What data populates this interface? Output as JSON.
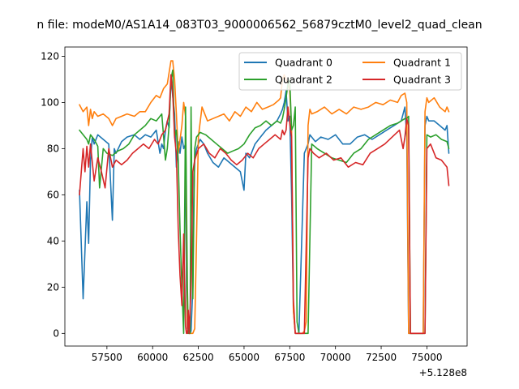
{
  "chart_data": {
    "type": "line",
    "title": "n file: modeM0/AS1A14_083T03_9000006562_56879cztM0_level2_quad_clean",
    "xlabel": "",
    "ylabel": "",
    "x_offset_label": "+5.128e8",
    "xlim": [
      55200,
      77200
    ],
    "ylim": [
      -5.5,
      124
    ],
    "x_ticks": [
      57500,
      60000,
      62500,
      65000,
      67500,
      70000,
      72500,
      75000
    ],
    "y_ticks": [
      0,
      20,
      40,
      60,
      80,
      100,
      120
    ],
    "grid": false,
    "legend_position": "top-right",
    "series": [
      {
        "name": "Quadrant 0",
        "color": "#1f77b4",
        "x": [
          56000,
          56200,
          56400,
          56500,
          56600,
          56700,
          56800,
          57000,
          57300,
          57600,
          57800,
          57900,
          58000,
          58300,
          58600,
          59000,
          59300,
          59600,
          59900,
          60200,
          60400,
          60500,
          60600,
          60700,
          60800,
          60900,
          61000,
          61200,
          61300,
          61400,
          61500,
          61600,
          61700,
          61800,
          61850,
          61900,
          62000,
          62050,
          62100,
          62200,
          62250,
          62300,
          62400,
          62600,
          62800,
          63000,
          63300,
          63600,
          63900,
          64200,
          64500,
          64800,
          65000,
          65100,
          65300,
          65600,
          65900,
          66200,
          66500,
          66800,
          67000,
          67100,
          67200,
          67300,
          67400,
          67500,
          67600,
          67700,
          67800,
          67900,
          68000,
          68300,
          68500,
          68600,
          68700,
          68900,
          69200,
          69600,
          70000,
          70400,
          70800,
          71200,
          71600,
          72000,
          72400,
          72800,
          73200,
          73600,
          73800,
          73900,
          74000,
          74100,
          74200,
          74400,
          74600,
          74800,
          74900,
          75000,
          75100,
          75400,
          75700,
          76000,
          76100,
          76200
        ],
        "y": [
          62,
          15,
          57,
          39,
          75,
          85,
          82,
          86,
          84,
          82,
          49,
          80,
          78,
          83,
          85,
          86,
          84,
          86,
          85,
          88,
          78,
          82,
          80,
          88,
          92,
          89,
          110,
          95,
          72,
          83,
          78,
          85,
          80,
          82,
          20,
          2,
          0,
          0,
          1,
          20,
          58,
          75,
          80,
          84,
          82,
          78,
          74,
          72,
          76,
          74,
          72,
          70,
          62,
          78,
          76,
          82,
          85,
          88,
          90,
          92,
          95,
          97,
          100,
          105,
          92,
          94,
          60,
          10,
          0,
          0,
          0,
          78,
          82,
          86,
          85,
          83,
          85,
          84,
          86,
          82,
          82,
          85,
          86,
          84,
          86,
          88,
          90,
          92,
          98,
          85,
          0,
          0,
          0,
          0,
          0,
          0,
          90,
          94,
          92,
          92,
          90,
          88,
          90,
          78
        ]
      },
      {
        "name": "Quadrant 1",
        "color": "#ff7f0e",
        "x": [
          56000,
          56200,
          56400,
          56500,
          56600,
          56700,
          56800,
          57000,
          57300,
          57600,
          57800,
          58000,
          58300,
          58600,
          59000,
          59300,
          59600,
          59900,
          60200,
          60400,
          60600,
          60800,
          61000,
          61100,
          61200,
          61300,
          61400,
          61600,
          61700,
          61800,
          61900,
          62000,
          62100,
          62200,
          62300,
          62400,
          62500,
          62700,
          63000,
          63300,
          63600,
          63900,
          64200,
          64500,
          64800,
          65100,
          65400,
          65700,
          66000,
          66300,
          66600,
          66900,
          67000,
          67100,
          67200,
          67300,
          67400,
          67500,
          67600,
          67700,
          67800,
          67900,
          68000,
          68200,
          68300,
          68400,
          68500,
          68600,
          68700,
          69000,
          69400,
          69800,
          70200,
          70600,
          71000,
          71400,
          71800,
          72200,
          72600,
          73000,
          73400,
          73600,
          73800,
          73900,
          74000,
          74100,
          74200,
          74400,
          74600,
          74800,
          74900,
          75000,
          75100,
          75400,
          75700,
          76000,
          76100,
          76200
        ],
        "y": [
          99,
          96,
          98,
          90,
          97,
          93,
          96,
          94,
          95,
          93,
          90,
          93,
          94,
          95,
          94,
          96,
          96,
          100,
          103,
          102,
          106,
          108,
          118,
          118,
          110,
          95,
          78,
          90,
          100,
          94,
          2,
          0,
          0,
          0,
          2,
          40,
          85,
          98,
          92,
          93,
          94,
          95,
          92,
          96,
          94,
          98,
          96,
          100,
          97,
          98,
          99,
          101,
          102,
          110,
          112,
          110,
          108,
          105,
          88,
          10,
          0,
          0,
          0,
          0,
          1,
          5,
          90,
          97,
          95,
          96,
          98,
          95,
          97,
          95,
          98,
          97,
          98,
          100,
          99,
          101,
          100,
          103,
          104,
          100,
          0,
          0,
          0,
          0,
          0,
          0,
          96,
          102,
          100,
          102,
          98,
          96,
          98,
          96
        ]
      },
      {
        "name": "Quadrant 2",
        "color": "#2ca02c",
        "x": [
          56000,
          56200,
          56400,
          56500,
          56600,
          56800,
          57000,
          57100,
          57300,
          57500,
          57800,
          58100,
          58400,
          58700,
          59000,
          59300,
          59600,
          59900,
          60200,
          60500,
          60700,
          60800,
          60900,
          61000,
          61100,
          61200,
          61300,
          61400,
          61500,
          61600,
          61700,
          61800,
          61900,
          61950,
          62000,
          62050,
          62100,
          62200,
          62300,
          62400,
          62600,
          62900,
          63200,
          63500,
          63800,
          64100,
          64400,
          64700,
          65000,
          65300,
          65600,
          65900,
          66200,
          66500,
          66800,
          67000,
          67100,
          67200,
          67300,
          67400,
          67500,
          67600,
          67700,
          67800,
          67900,
          68000,
          68100,
          68300,
          68500,
          68700,
          69000,
          69400,
          69800,
          70200,
          70600,
          71000,
          71400,
          71800,
          72200,
          72600,
          73000,
          73400,
          73600,
          73800,
          73900,
          74000,
          74100,
          74200,
          74400,
          74600,
          74800,
          74900,
          75000,
          75200,
          75500,
          75800,
          76100,
          76200
        ],
        "y": [
          88,
          86,
          84,
          82,
          86,
          84,
          81,
          63,
          80,
          78,
          77,
          79,
          80,
          82,
          86,
          88,
          90,
          93,
          92,
          95,
          75,
          80,
          90,
          110,
          114,
          85,
          88,
          75,
          45,
          20,
          0,
          98,
          20,
          0,
          0,
          0,
          98,
          15,
          80,
          85,
          87,
          86,
          84,
          82,
          80,
          78,
          79,
          80,
          82,
          86,
          89,
          90,
          92,
          90,
          92,
          91,
          93,
          97,
          102,
          108,
          110,
          88,
          90,
          98,
          5,
          0,
          0,
          0,
          0,
          82,
          80,
          78,
          76,
          75,
          74,
          78,
          80,
          84,
          86,
          88,
          90,
          91,
          92,
          93,
          93,
          94,
          0,
          0,
          0,
          0,
          0,
          0,
          86,
          85,
          86,
          84,
          83,
          80
        ]
      },
      {
        "name": "Quadrant 3",
        "color": "#d62728",
        "x": [
          56000,
          56200,
          56300,
          56400,
          56500,
          56600,
          56800,
          57000,
          57200,
          57400,
          57600,
          57800,
          58000,
          58300,
          58600,
          58900,
          59200,
          59500,
          59800,
          60100,
          60300,
          60500,
          60700,
          60900,
          61000,
          61100,
          61200,
          61300,
          61400,
          61500,
          61600,
          61700,
          61800,
          61850,
          61900,
          61950,
          62000,
          62100,
          62200,
          62300,
          62500,
          62800,
          63100,
          63400,
          63700,
          64000,
          64300,
          64600,
          64900,
          65200,
          65500,
          65800,
          66100,
          66400,
          66700,
          67000,
          67100,
          67200,
          67300,
          67400,
          67500,
          67600,
          67700,
          67800,
          67900,
          68000,
          68300,
          68500,
          68600,
          68800,
          69100,
          69500,
          69900,
          70300,
          70700,
          71100,
          71500,
          71900,
          72300,
          72700,
          73100,
          73500,
          73700,
          73800,
          73900,
          74000,
          74100,
          74200,
          74400,
          74600,
          74800,
          74900,
          75000,
          75200,
          75500,
          75800,
          76100,
          76200
        ],
        "y": [
          60,
          80,
          70,
          81,
          72,
          82,
          66,
          76,
          70,
          63,
          80,
          72,
          75,
          73,
          75,
          78,
          80,
          82,
          80,
          84,
          82,
          86,
          88,
          95,
          112,
          104,
          85,
          78,
          45,
          25,
          12,
          43,
          3,
          0,
          0,
          10,
          0,
          20,
          70,
          75,
          80,
          82,
          78,
          76,
          80,
          78,
          75,
          73,
          75,
          78,
          76,
          80,
          82,
          84,
          86,
          84,
          88,
          86,
          88,
          98,
          91,
          85,
          15,
          0,
          0,
          0,
          0,
          76,
          80,
          78,
          76,
          78,
          75,
          76,
          72,
          74,
          73,
          78,
          80,
          82,
          85,
          88,
          80,
          85,
          93,
          90,
          0,
          0,
          0,
          0,
          0,
          0,
          80,
          82,
          76,
          75,
          72,
          64
        ]
      }
    ]
  }
}
